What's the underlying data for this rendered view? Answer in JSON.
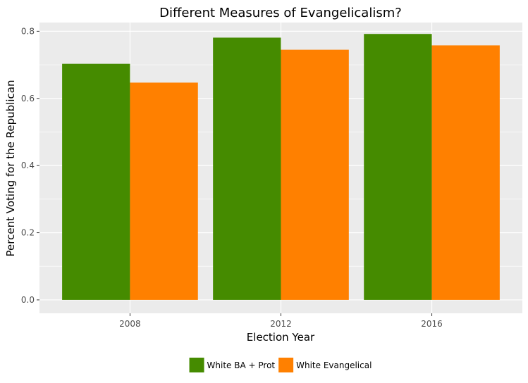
{
  "chart_data": {
    "type": "bar",
    "title": "Different Measures of Evangelicalism?",
    "xlabel": "Election Year",
    "ylabel": "Percent Voting for the Republican",
    "categories": [
      "2008",
      "2012",
      "2016"
    ],
    "series": [
      {
        "name": "White BA + Prot",
        "values": [
          0.703,
          0.781,
          0.792
        ],
        "color": "#458B00"
      },
      {
        "name": "White Evangelical",
        "values": [
          0.647,
          0.745,
          0.758
        ],
        "color": "#FF8000"
      }
    ],
    "ylim": [
      -0.04,
      0.826
    ],
    "yticks": [
      0.0,
      0.2,
      0.4,
      0.6,
      0.8
    ],
    "ytick_labels": [
      "0.0",
      "0.2",
      "0.4",
      "0.6",
      "0.8"
    ],
    "grid": true,
    "legend_position": "bottom",
    "background_color": "#EBEBEB",
    "grid_color": "#FFFFFF"
  }
}
